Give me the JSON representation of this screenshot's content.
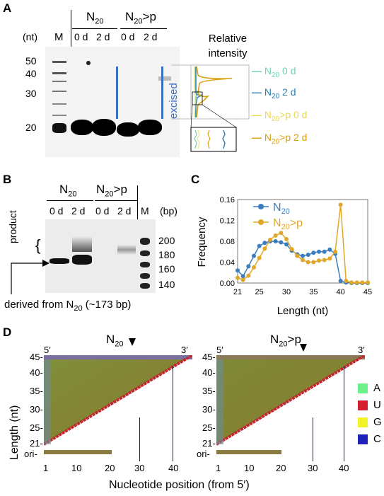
{
  "panels": {
    "A": {
      "label": "A",
      "unit_label": "(nt)",
      "marker_lane": "M",
      "group1": {
        "name": "N",
        "sub": "20"
      },
      "group2": {
        "name": "N",
        "sub": "20",
        "suffix": ">p"
      },
      "lanes": [
        "0 d",
        "2 d",
        "0 d",
        "2 d"
      ],
      "markers": [
        "50",
        "40",
        "30",
        "20"
      ],
      "excised_label": "excised",
      "ri_title_line1": "Relative",
      "ri_title_line2": "intensity",
      "legend": [
        {
          "name": "N",
          "sub": "20",
          "suffix": " 0 d",
          "color": "#6fd3b4"
        },
        {
          "name": "N",
          "sub": "20",
          "suffix": " 2 d",
          "color": "#2c7eb0"
        },
        {
          "name": "N",
          "sub": "20",
          "suffix": ">p 0 d",
          "color": "#f5e67a"
        },
        {
          "name": "N",
          "sub": "20",
          "suffix": ">p 2 d",
          "color": "#d9a012"
        }
      ]
    },
    "B": {
      "label": "B",
      "unit_label": "(bp)",
      "marker_lane": "M",
      "group1": {
        "name": "N",
        "sub": "20"
      },
      "group2": {
        "name": "N",
        "sub": "20",
        "suffix": ">p"
      },
      "lanes": [
        "0 d",
        "2 d",
        "0 d",
        "2 d"
      ],
      "markers": [
        "200",
        "180",
        "160",
        "140"
      ],
      "product_label": "product",
      "derived_prefix": "derived from N",
      "derived_sub": "20",
      "derived_suffix": " (~173 bp)"
    },
    "C": {
      "label": "C",
      "ylabel": "Frequency",
      "xlabel": "Length (nt)",
      "yticks": [
        "0.00",
        "0.04",
        "0.08",
        "0.12",
        "0.16"
      ],
      "xticks": [
        "21",
        "25",
        "30",
        "35",
        "40",
        "45"
      ],
      "legend": [
        {
          "name": "N",
          "sub": "20"
        },
        {
          "name": "N",
          "sub": "20",
          "suffix": ">p"
        }
      ]
    },
    "D": {
      "label": "D",
      "ylabel": "Length (nt)",
      "xlabel": "Nucleotide position (from 5′)",
      "five_prime": "5′",
      "three_prime": "3′",
      "ori_label": "ori-",
      "left_title": {
        "name": "N",
        "sub": "20"
      },
      "right_title": {
        "name": "N",
        "sub": "20",
        "suffix": ">p"
      },
      "yticks": [
        "45-",
        "40-",
        "35-",
        "30-",
        "25-",
        "21-"
      ],
      "xticks": [
        "1",
        "10",
        "20",
        "30",
        "40"
      ],
      "legend": [
        {
          "letter": "A",
          "color": "#6cf08a"
        },
        {
          "letter": "U",
          "color": "#d2202f"
        },
        {
          "letter": "G",
          "color": "#f2f22a"
        },
        {
          "letter": "C",
          "color": "#1f22b8"
        }
      ]
    }
  },
  "chart_data": {
    "type": "line",
    "xlabel": "Length (nt)",
    "ylabel": "Frequency",
    "xlim": [
      21,
      45
    ],
    "ylim": [
      0,
      0.16
    ],
    "x": [
      21,
      22,
      23,
      24,
      25,
      26,
      27,
      28,
      29,
      30,
      31,
      32,
      33,
      34,
      35,
      36,
      37,
      38,
      39,
      40,
      41,
      42,
      43,
      44,
      45
    ],
    "series": [
      {
        "name": "N20",
        "color": "#3a7ebf",
        "values": [
          0.024,
          0.013,
          0.032,
          0.052,
          0.071,
          0.077,
          0.08,
          0.08,
          0.078,
          0.074,
          0.062,
          0.055,
          0.052,
          0.054,
          0.058,
          0.06,
          0.06,
          0.064,
          0.056,
          0.004,
          0.001,
          0.0,
          0.0,
          0.0,
          0.0
        ]
      },
      {
        "name": "N20>p",
        "color": "#e1a72a",
        "values": [
          0.01,
          0.006,
          0.014,
          0.03,
          0.048,
          0.066,
          0.083,
          0.091,
          0.096,
          0.084,
          0.065,
          0.052,
          0.044,
          0.04,
          0.04,
          0.043,
          0.044,
          0.047,
          0.06,
          0.15,
          0.004,
          0.001,
          0.001,
          0.001,
          0.001
        ]
      }
    ]
  }
}
